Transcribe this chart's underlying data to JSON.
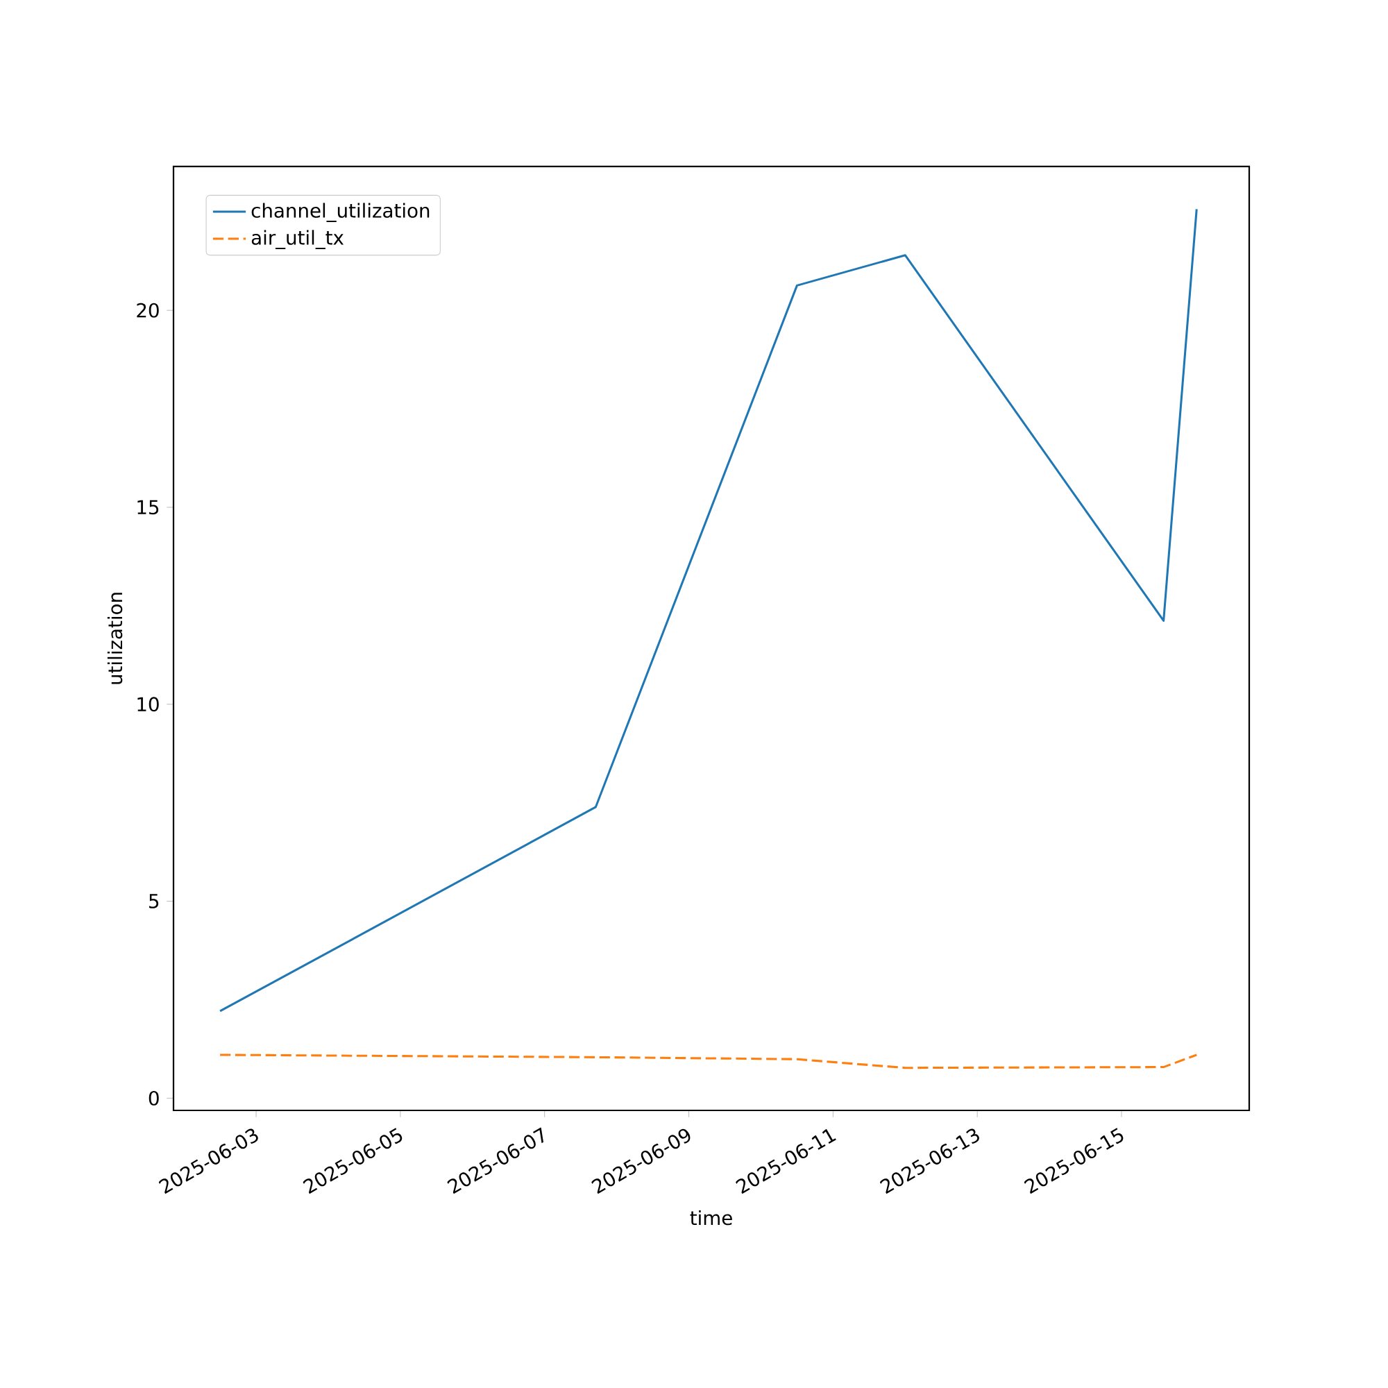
{
  "chart_data": {
    "type": "line",
    "xlabel": "time",
    "ylabel": "utilization",
    "x": [
      "2025-06-02T12:00",
      "2025-06-07T17:00",
      "2025-06-10T12:00",
      "2025-06-12T00:00",
      "2025-06-15T14:00",
      "2025-06-16T01:00"
    ],
    "series": [
      {
        "name": "channel_utilization",
        "color": "#1f77b4",
        "line_style": "solid",
        "values": [
          2.21,
          7.39,
          20.63,
          21.4,
          12.12,
          22.57
        ]
      },
      {
        "name": "air_util_tx",
        "color": "#ff7f0e",
        "line_style": "dashed",
        "values": [
          1.1,
          1.04,
          0.99,
          0.77,
          0.79,
          1.1
        ]
      }
    ],
    "xlim": [
      "2025-06-01T20:30",
      "2025-06-16T18:30"
    ],
    "xticks": [
      "2025-06-03",
      "2025-06-05",
      "2025-06-07",
      "2025-06-09",
      "2025-06-11",
      "2025-06-13",
      "2025-06-15"
    ],
    "ylim": [
      -0.31,
      23.65
    ],
    "yticks": [
      0,
      5,
      10,
      15,
      20
    ],
    "grid": false,
    "legend": "top left"
  }
}
